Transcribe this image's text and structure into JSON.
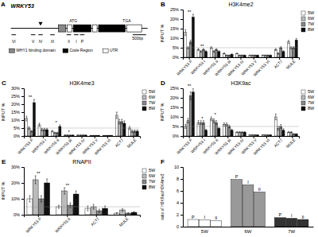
{
  "chart_data": [
    {
      "type": "diagram",
      "panel_label": "A",
      "title": "WRKY53",
      "annotations": [
        "ATG",
        "TGA",
        "VI",
        "V",
        "IV",
        "III",
        "II",
        "I",
        "P",
        "500bp",
        "WHY1 binding domain",
        "Code Region",
        "UTR"
      ],
      "colors": [
        "#888888",
        "#000000",
        "#ffffff"
      ]
    },
    {
      "type": "bar",
      "panel_label": "B",
      "title": "H3K4me2",
      "y_label": "INPUT %",
      "categories": [
        "WRKY53 P",
        "WRKY53 I",
        "WRKY53 II",
        "WRKY53 III",
        "WRKY53 IV",
        "WRKY53 V",
        "WRKY53 VI",
        "ACT7",
        "MULE"
      ],
      "series": [
        {
          "name": "5W",
          "color": "#ffffff",
          "values": [
            13,
            4,
            5,
            2,
            2,
            1,
            1,
            4,
            8
          ],
          "errors": [
            1.5,
            0.5,
            0.5,
            0.3,
            0.2,
            0.2,
            0.2,
            0.5,
            0.8
          ]
        },
        {
          "name": "6W",
          "color": "#bbbbbb",
          "values": [
            5,
            3,
            3,
            1,
            1,
            1,
            1,
            2,
            5
          ],
          "errors": [
            0.5,
            0.4,
            0.4,
            0.2,
            0.2,
            0.2,
            0.2,
            0.4,
            0.5
          ]
        },
        {
          "name": "7W",
          "color": "#888888",
          "values": [
            8,
            4,
            4,
            1,
            1,
            1,
            1,
            5,
            5
          ],
          "errors": [
            1,
            0.5,
            0.5,
            0.2,
            0.2,
            0.2,
            0.2,
            0.5,
            0.5
          ]
        },
        {
          "name": "8W",
          "color": "#111111",
          "values": [
            21,
            3,
            3,
            1.5,
            1,
            1,
            1,
            3,
            9
          ],
          "errors": [
            1.5,
            0.4,
            0.4,
            0.3,
            0.2,
            0.2,
            0.2,
            0.4,
            0.8
          ]
        }
      ],
      "ylim": [
        0,
        25
      ],
      "yticks": [
        {
          "value": 0,
          "label": "0%"
        },
        {
          "value": 5,
          "label": "5%"
        },
        {
          "value": 10,
          "label": "10%"
        },
        {
          "value": 15,
          "label": "15%"
        },
        {
          "value": 20,
          "label": "20%"
        },
        {
          "value": 25,
          "label": "25%"
        }
      ],
      "reference_line": 5,
      "annotations": [
        {
          "category": "WRKY53 P",
          "text": "**"
        },
        {
          "category": "WRKY53 I",
          "text": "**"
        }
      ],
      "legend": "upper right",
      "grid": false
    },
    {
      "type": "bar",
      "panel_label": "C",
      "title": "H3K4me3",
      "y_label": "INPUT %",
      "categories": [
        "WRKY53 P",
        "WRKY53 I",
        "WRKY53 II",
        "WRKY53 III",
        "WRKY53 IV",
        "WRKY53 V",
        "WRKY53 VI",
        "ACT7",
        "MULE"
      ],
      "series": [
        {
          "name": "5W",
          "color": "#ffffff",
          "values": [
            11,
            7,
            3,
            0.5,
            0.5,
            0.3,
            0.3,
            13,
            5
          ],
          "errors": [
            1.5,
            1,
            0.5,
            0.2,
            0.2,
            0.1,
            0.1,
            2,
            1
          ]
        },
        {
          "name": "6W",
          "color": "#bbbbbb",
          "values": [
            5,
            4,
            2,
            0.5,
            0.5,
            0.3,
            0.3,
            9,
            3
          ],
          "errors": [
            0.8,
            0.8,
            0.4,
            0.2,
            0.2,
            0.1,
            0.1,
            1.5,
            0.8
          ]
        },
        {
          "name": "7W",
          "color": "#888888",
          "values": [
            3,
            4,
            2,
            0.5,
            0.5,
            0.3,
            0.3,
            9,
            3
          ],
          "errors": [
            0.5,
            0.8,
            0.4,
            0.2,
            0.2,
            0.1,
            0.1,
            1.5,
            0.8
          ]
        },
        {
          "name": "8W",
          "color": "#111111",
          "values": [
            21,
            4,
            6,
            0.5,
            0.5,
            0.3,
            0.3,
            8,
            3
          ],
          "errors": [
            2,
            0.8,
            1,
            0.2,
            0.2,
            0.1,
            0.1,
            1.5,
            0.8
          ]
        }
      ],
      "ylim": [
        0,
        30
      ],
      "yticks": [
        {
          "value": 0,
          "label": "0%"
        },
        {
          "value": 5,
          "label": "5%"
        },
        {
          "value": 10,
          "label": "10%"
        },
        {
          "value": 15,
          "label": "15%"
        },
        {
          "value": 20,
          "label": "20%"
        },
        {
          "value": 25,
          "label": "25%"
        },
        {
          "value": 30,
          "label": "30%"
        }
      ],
      "reference_line": 5,
      "annotations": [
        {
          "category": "WRKY53 P",
          "text": "**"
        },
        {
          "category": "WRKY53 II",
          "text": "*"
        },
        {
          "category": "WRKY53 III",
          "text": "*"
        }
      ],
      "legend": "upper right",
      "grid": false
    },
    {
      "type": "bar",
      "panel_label": "D",
      "title": "H3K9ac",
      "y_label": "INPUT %",
      "categories": [
        "WRKY53 P",
        "WRKY53 I",
        "WRKY53 II",
        "WRKY53 III",
        "WRKY53 IV",
        "WRKY53 V",
        "WRKY53 VI",
        "ACT7",
        "MULE"
      ],
      "series": [
        {
          "name": "5W",
          "color": "#ffffff",
          "values": [
            5,
            7,
            9,
            6,
            2,
            0.5,
            0.5,
            10,
            2
          ],
          "errors": [
            1,
            1,
            1,
            0.8,
            0.3,
            0.1,
            0.1,
            1.5,
            0.3
          ]
        },
        {
          "name": "6W",
          "color": "#bbbbbb",
          "values": [
            8,
            7,
            8,
            6,
            2,
            0.5,
            0.5,
            4,
            2
          ],
          "errors": [
            1.2,
            1,
            1,
            0.8,
            0.3,
            0.1,
            0.1,
            1,
            0.3
          ]
        },
        {
          "name": "7W",
          "color": "#888888",
          "values": [
            21,
            7,
            7,
            5,
            2,
            0.5,
            0.5,
            5,
            1
          ],
          "errors": [
            2,
            1,
            1,
            0.7,
            0.3,
            0.1,
            0.1,
            1,
            0.2
          ]
        },
        {
          "name": "8W",
          "color": "#111111",
          "values": [
            23,
            3,
            4,
            3,
            2,
            0.5,
            0.5,
            3,
            1
          ],
          "errors": [
            2,
            0.5,
            0.5,
            0.5,
            0.3,
            0.1,
            0.1,
            0.8,
            0.2
          ]
        }
      ],
      "ylim": [
        0,
        25
      ],
      "yticks": [
        {
          "value": 0,
          "label": "0%"
        },
        {
          "value": 5,
          "label": "5%"
        },
        {
          "value": 10,
          "label": "10%"
        },
        {
          "value": 15,
          "label": "15%"
        },
        {
          "value": 20,
          "label": "20%"
        },
        {
          "value": 25,
          "label": "25%"
        }
      ],
      "reference_line": 5,
      "annotations": [
        {
          "category": "WRKY53 P",
          "text": "**"
        },
        {
          "category": "WRKY53 I",
          "text": "*"
        },
        {
          "category": "WRKY53 II",
          "text": "*"
        }
      ],
      "legend": "upper right",
      "grid": false
    },
    {
      "type": "bar",
      "panel_label": "E",
      "title": "RNAPII",
      "y_label": "INPUT %",
      "categories": [
        "WRKY53 P",
        "WRKY53 II",
        "ACT7",
        "MULE"
      ],
      "series": [
        {
          "name": "5W",
          "color": "#ffffff",
          "values": [
            10,
            5,
            4,
            1
          ],
          "errors": [
            2,
            1,
            1.5,
            0.3
          ]
        },
        {
          "name": "6W",
          "color": "#bbbbbb",
          "values": [
            22,
            15,
            5,
            3
          ],
          "errors": [
            2.5,
            2,
            1.5,
            0.8
          ]
        },
        {
          "name": "7W",
          "color": "#888888",
          "values": [
            10,
            6,
            2.5,
            1
          ],
          "errors": [
            2,
            1.5,
            1,
            0.3
          ]
        },
        {
          "name": "8W",
          "color": "#111111",
          "values": [
            20,
            13,
            4,
            1.5
          ],
          "errors": [
            2.5,
            2,
            1.5,
            0.5
          ]
        }
      ],
      "ylim": [
        0,
        30
      ],
      "yticks": [
        {
          "value": 0,
          "label": "0%"
        },
        {
          "value": 10,
          "label": "10%"
        },
        {
          "value": 20,
          "label": "20%"
        },
        {
          "value": 30,
          "label": "30%"
        }
      ],
      "reference_line": 5,
      "annotations": [
        {
          "category": "WRKY53 P",
          "text": "**"
        },
        {
          "category": "WRKY53 II",
          "text": "**"
        }
      ],
      "legend": "upper right",
      "grid": false
    },
    {
      "type": "bar",
      "panel_label": "F",
      "y_label": "ratio of H3K9ac/H3K4me3",
      "categories": [
        "5W",
        "6W",
        "7W"
      ],
      "series": [
        {
          "name": "P",
          "colors": [
            "#ffffff",
            "#999999",
            "#333333"
          ],
          "values": [
            1.2,
            7.9,
            1.5
          ]
        },
        {
          "name": "I",
          "colors": [
            "#ffffff",
            "#999999",
            "#333333"
          ],
          "values": [
            1.1,
            7.0,
            1.4
          ]
        },
        {
          "name": "II",
          "colors": [
            "#ffffff",
            "#999999",
            "#333333"
          ],
          "values": [
            1.0,
            5.8,
            1.2
          ]
        }
      ],
      "ylim": [
        0,
        10
      ],
      "yticks": [
        0,
        2,
        4,
        6,
        8,
        10
      ],
      "grid": false
    }
  ]
}
